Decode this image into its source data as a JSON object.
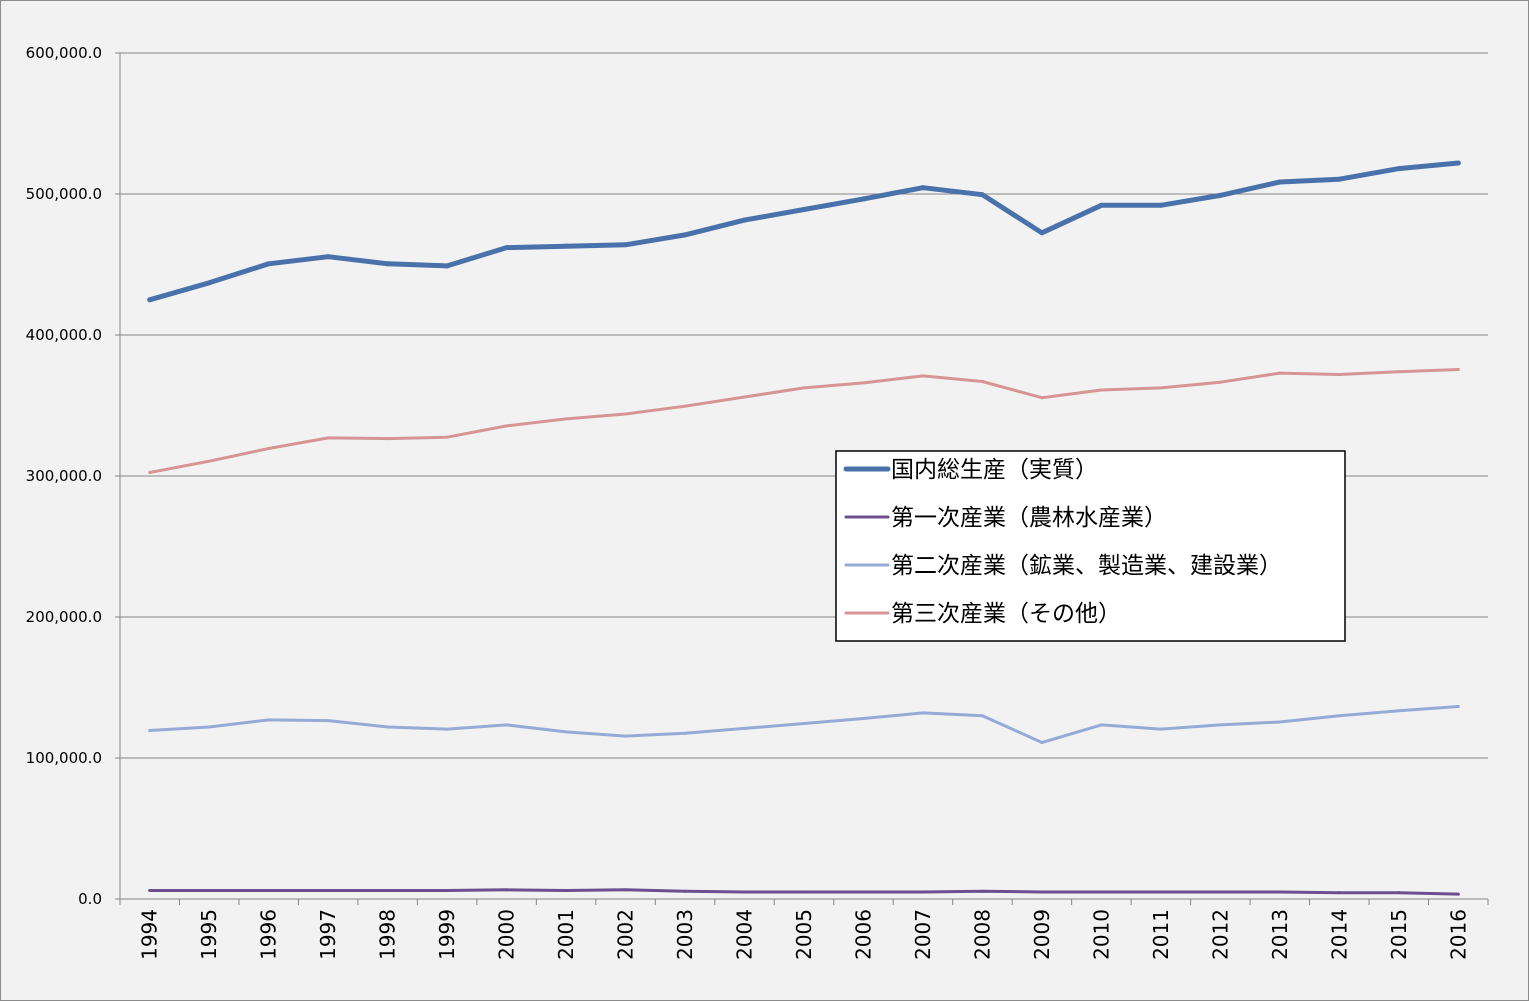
{
  "chart_data": {
    "type": "line",
    "title": "",
    "xlabel": "",
    "ylabel": "",
    "ylim": [
      0,
      600000
    ],
    "y_ticks": [
      "0.0",
      "100,000.0",
      "200,000.0",
      "300,000.0",
      "400,000.0",
      "500,000.0",
      "600,000.0"
    ],
    "grid": "horizontal",
    "legend_position": "center-right",
    "categories": [
      "1994",
      "1995",
      "1996",
      "1997",
      "1998",
      "1999",
      "2000",
      "2001",
      "2002",
      "2003",
      "2004",
      "2005",
      "2006",
      "2007",
      "2008",
      "2009",
      "2010",
      "2011",
      "2012",
      "2013",
      "2014",
      "2015",
      "2016"
    ],
    "series": [
      {
        "name": "国内総生産（実質）",
        "color": "#4a72aa",
        "line_width": "thick",
        "values": [
          425000,
          437000,
          450500,
          455500,
          450500,
          449000,
          462000,
          463000,
          464000,
          471000,
          481500,
          489000,
          496500,
          504500,
          499500,
          472500,
          492000,
          492000,
          499000,
          508500,
          510500,
          518000,
          522000
        ]
      },
      {
        "name": "第一次産業（農林水産業）",
        "color": "#6b4f8e",
        "line_width": "normal",
        "values": [
          6000,
          6000,
          6000,
          6000,
          6000,
          6000,
          6500,
          6000,
          6500,
          5500,
          5000,
          5000,
          5000,
          5000,
          5500,
          5000,
          5000,
          5000,
          5000,
          5000,
          4500,
          4500,
          3500
        ]
      },
      {
        "name": "第二次産業（鉱業、製造業、建設業）",
        "color": "#95abd6",
        "line_width": "normal",
        "values": [
          119500,
          122000,
          127000,
          126500,
          122000,
          120500,
          123500,
          118500,
          115500,
          117500,
          121000,
          124500,
          128000,
          132000,
          130000,
          111000,
          123500,
          120500,
          123500,
          125500,
          130000,
          133500,
          136500
        ]
      },
      {
        "name": "第三次産業（その他）",
        "color": "#d69594",
        "line_width": "normal",
        "values": [
          302500,
          310500,
          319500,
          327000,
          326500,
          327500,
          335500,
          340500,
          344000,
          349500,
          356000,
          362500,
          366000,
          371000,
          367000,
          355500,
          361000,
          362500,
          366500,
          373000,
          372000,
          374000,
          375500
        ]
      }
    ]
  }
}
